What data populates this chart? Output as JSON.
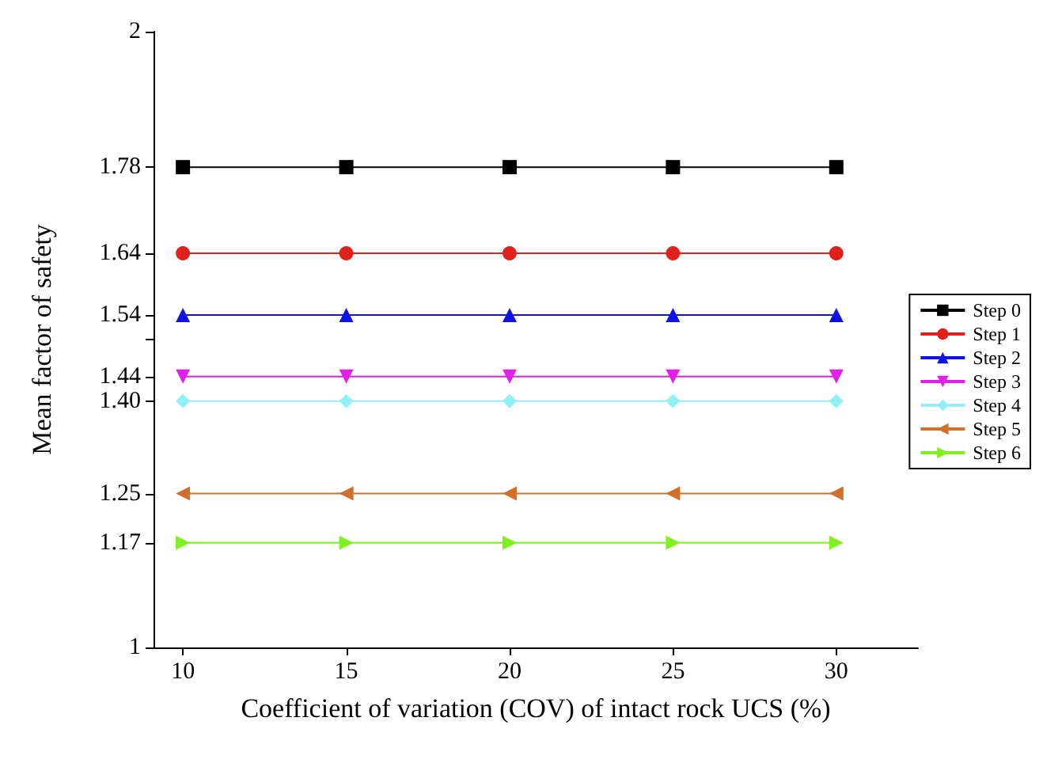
{
  "chart_data": {
    "type": "line",
    "xlabel": "Coefficient of variation (COV) of intact rock UCS (%)",
    "ylabel": "Mean factor of safety",
    "x": [
      10,
      15,
      20,
      25,
      30
    ],
    "xlim": [
      9.1,
      32.5
    ],
    "xticks": [
      10,
      15,
      20,
      25,
      30
    ],
    "ylim": [
      1,
      2
    ],
    "yticks": [
      1,
      {
        "value": 1.17,
        "label": "1.17"
      },
      {
        "value": 1.25,
        "label": "1.25"
      },
      {
        "value": 1.4,
        "label": "1.40"
      },
      {
        "value": 1.44,
        "label": "1.44"
      },
      {
        "value": 1.5,
        "label": null
      },
      {
        "value": 1.54,
        "label": "1.54"
      },
      {
        "value": 1.64,
        "label": "1.64"
      },
      {
        "value": 1.78,
        "label": "1.78"
      },
      2
    ],
    "grid": false,
    "legend": "right",
    "line_style": "solid",
    "series": [
      {
        "name": "Step 0",
        "color": "#000000",
        "marker": "square",
        "values": [
          1.78,
          1.78,
          1.78,
          1.78,
          1.78
        ]
      },
      {
        "name": "Step 1",
        "color": "#e0201b",
        "marker": "circle",
        "values": [
          1.64,
          1.64,
          1.64,
          1.64,
          1.64
        ]
      },
      {
        "name": "Step 2",
        "color": "#1010e8",
        "marker": "triangle",
        "values": [
          1.54,
          1.54,
          1.54,
          1.54,
          1.54
        ]
      },
      {
        "name": "Step 3",
        "color": "#e020e8",
        "marker": "triangle-down",
        "values": [
          1.44,
          1.44,
          1.44,
          1.44,
          1.44
        ]
      },
      {
        "name": "Step 4",
        "color": "#90f0f8",
        "marker": "diamond",
        "values": [
          1.4,
          1.4,
          1.4,
          1.4,
          1.4
        ]
      },
      {
        "name": "Step 5",
        "color": "#d0702a",
        "marker": "triangle-left",
        "values": [
          1.25,
          1.25,
          1.25,
          1.25,
          1.25
        ]
      },
      {
        "name": "Step 6",
        "color": "#80f020",
        "marker": "triangle-right",
        "values": [
          1.17,
          1.17,
          1.17,
          1.17,
          1.17
        ]
      }
    ]
  }
}
